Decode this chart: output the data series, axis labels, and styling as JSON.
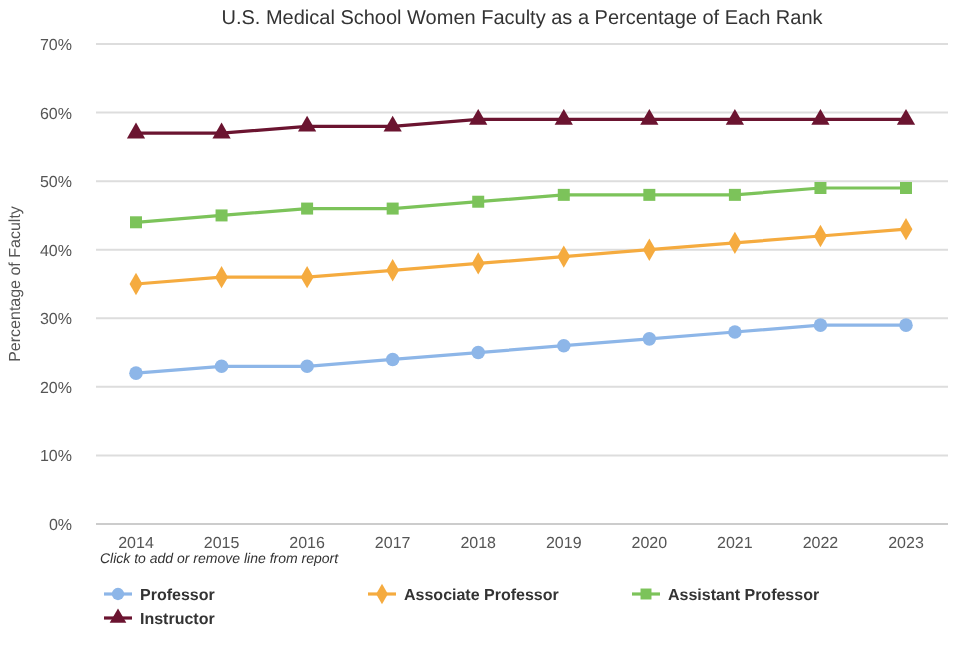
{
  "chart_data": {
    "type": "line",
    "title": "U.S. Medical School Women Faculty as a Percentage of Each Rank",
    "ylabel": "Percentage of Faculty",
    "legend_title": "Click to add or remove line from report",
    "categories": [
      "2014",
      "2015",
      "2016",
      "2017",
      "2018",
      "2019",
      "2020",
      "2021",
      "2022",
      "2023"
    ],
    "series": [
      {
        "name": "Professor",
        "color": "#8db6e8",
        "marker": "circle",
        "values": [
          22,
          23,
          23,
          24,
          25,
          26,
          27,
          28,
          29,
          29
        ]
      },
      {
        "name": "Associate Professor",
        "color": "#f5ab3f",
        "marker": "diamond",
        "values": [
          35,
          36,
          36,
          37,
          38,
          39,
          40,
          41,
          42,
          43
        ]
      },
      {
        "name": "Assistant Professor",
        "color": "#7cc35a",
        "marker": "square",
        "values": [
          44,
          45,
          46,
          46,
          47,
          48,
          48,
          48,
          49,
          49
        ]
      },
      {
        "name": "Instructor",
        "color": "#6b1430",
        "marker": "triangle",
        "values": [
          57,
          57,
          58,
          58,
          59,
          59,
          59,
          59,
          59,
          59
        ]
      }
    ],
    "ylim": [
      0,
      70
    ],
    "yticks": [
      {
        "value": 0,
        "label": "0%"
      },
      {
        "value": 10,
        "label": "10%"
      },
      {
        "value": 20,
        "label": "20%"
      },
      {
        "value": 30,
        "label": "30%"
      },
      {
        "value": 40,
        "label": "40%"
      },
      {
        "value": 50,
        "label": "50%"
      },
      {
        "value": 60,
        "label": "60%"
      },
      {
        "value": 70,
        "label": "70%"
      }
    ],
    "grid": "y",
    "legend": "bottom",
    "line_style": "solid"
  }
}
